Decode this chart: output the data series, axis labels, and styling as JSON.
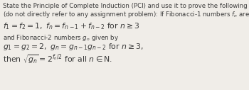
{
  "line1": "State the Principle of Complete Induction (PCI) and use it to prove the following statement",
  "line2": "(do not directly refer to any assignment problem): If Fibonacci-1 numbers $f_n$ are given by",
  "line3": "$f_1 = f_2 = 1,\\ f_n = f_{n-1} + f_{n-2}$ for $n \\geq 3$",
  "line4": "and Fibonacci-2 numbers $g_n$ given by",
  "line5": "$g_1 = g_2 = 2,\\ g_n = g_{n-1}g_{n-2}$ for $n \\geq 3,$",
  "line6": "then $\\sqrt{g_n} = 2^{f_n/2}$ for all $n \\in \\mathrm{N}$.",
  "bg_color": "#f0ede8",
  "text_color": "#3a3a3a",
  "fs_plain": 6.2,
  "fs_math": 7.8,
  "figwidth": 3.5,
  "figheight": 1.27,
  "dpi": 100
}
